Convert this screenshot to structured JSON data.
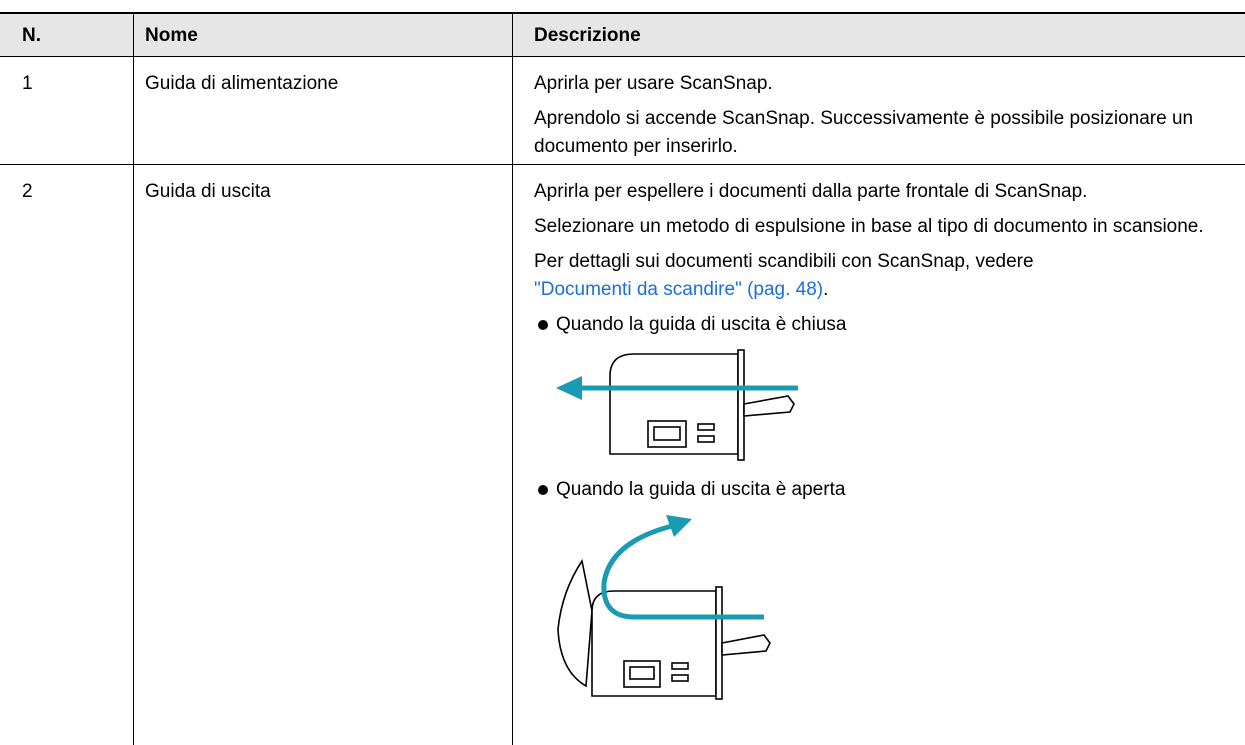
{
  "table": {
    "header": [
      "N.",
      "Nome",
      "Descrizione"
    ],
    "rows": [
      {
        "number": "1",
        "name": "Guida di alimentazione",
        "description": [
          "Aprirla per usare ScanSnap.",
          "Aprendolo si accende ScanSnap. Successivamente è possibile posizionare un documento per inserirlo."
        ]
      },
      {
        "number": "2",
        "name": "Guida di uscita",
        "description": [
          "Aprirla per espellere i documenti dalla parte frontale di ScanSnap.",
          "Selezionare un metodo di espulsione in base al tipo di documento in scansione.",
          "Per dettagli sui documenti scandibili con ScanSnap, vedere"
        ],
        "link": "\"Documenti da scandire\" (pag. 48)",
        "link_suffix": ".",
        "bullets": [
          "Quando la guida di uscita è chiusa",
          "Quando la guida di uscita è aperta"
        ]
      }
    ]
  }
}
